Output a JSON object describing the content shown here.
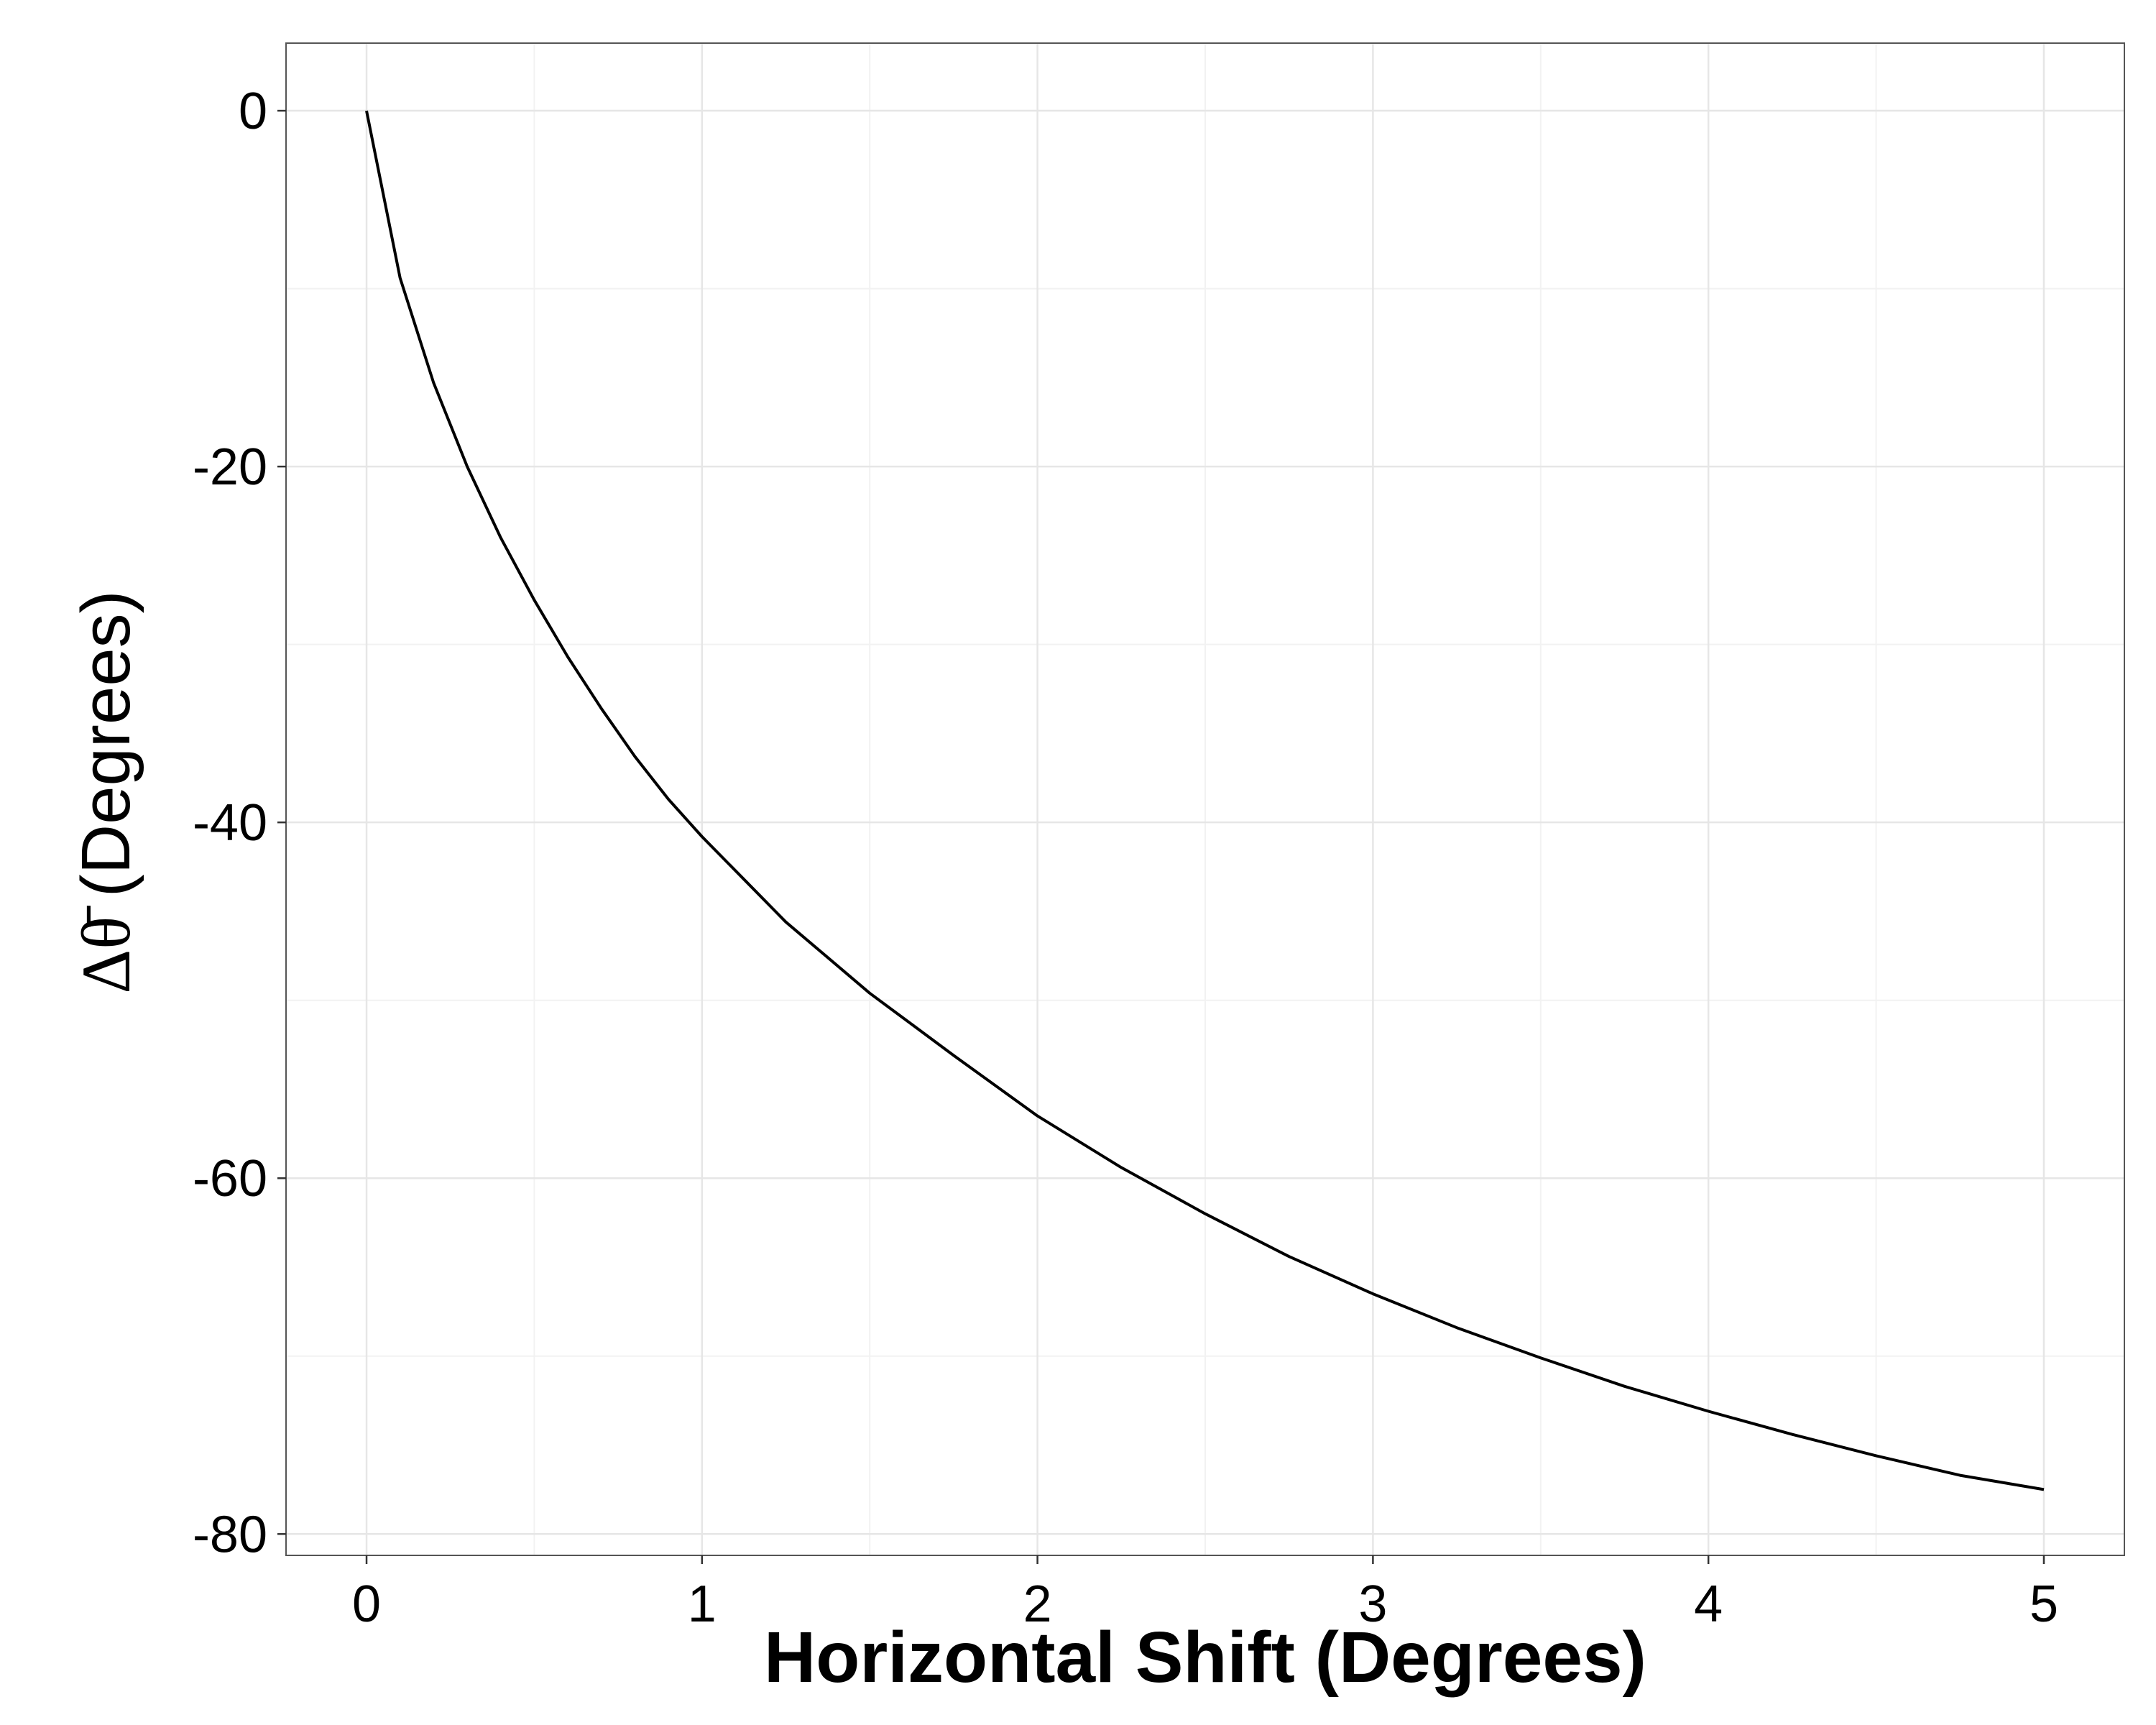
{
  "chart_data": {
    "type": "line",
    "title": "",
    "xlabel": "Horizontal Shift (Degrees)",
    "ylabel": {
      "symbol": "Δθ̄",
      "unit": " (Degrees)"
    },
    "xlim": [
      -0.24,
      5.24
    ],
    "ylim": [
      -81.2,
      3.8
    ],
    "x_ticks": [
      0,
      1,
      2,
      3,
      4,
      5
    ],
    "x_tick_labels": [
      "0",
      "1",
      "2",
      "3",
      "4",
      "5"
    ],
    "y_ticks": [
      0,
      -20,
      -40,
      -60,
      -80
    ],
    "y_tick_labels": [
      "0",
      "-20",
      "-40",
      "-60",
      "-80"
    ],
    "x_minor_ticks": [
      0.5,
      1.5,
      2.5,
      3.5,
      4.5
    ],
    "y_minor_ticks": [
      -10,
      -30,
      -50,
      -70
    ],
    "grid": true,
    "legend": "none",
    "colors": {
      "background": "#ffffff",
      "line": "#000000",
      "grid_major": "#e6e6e6",
      "grid_minor": "#f2f2f2",
      "frame": "#555555"
    },
    "series": [
      {
        "x": [
          0,
          0.1,
          0.2,
          0.3,
          0.4,
          0.5,
          0.6,
          0.7,
          0.8,
          0.9,
          1.0,
          1.25,
          1.5,
          1.75,
          2.0,
          2.25,
          2.5,
          2.75,
          3.0,
          3.25,
          3.5,
          3.75,
          4.0,
          4.25,
          4.5,
          4.75,
          5.0
        ],
        "y": [
          0,
          -9.4,
          -15.3,
          -20.0,
          -24.0,
          -27.5,
          -30.7,
          -33.6,
          -36.3,
          -38.7,
          -40.8,
          -45.6,
          -49.6,
          -53.1,
          -56.5,
          -59.4,
          -62.0,
          -64.4,
          -66.5,
          -68.4,
          -70.1,
          -71.7,
          -73.1,
          -74.4,
          -75.6,
          -76.7,
          -77.5
        ]
      }
    ]
  }
}
